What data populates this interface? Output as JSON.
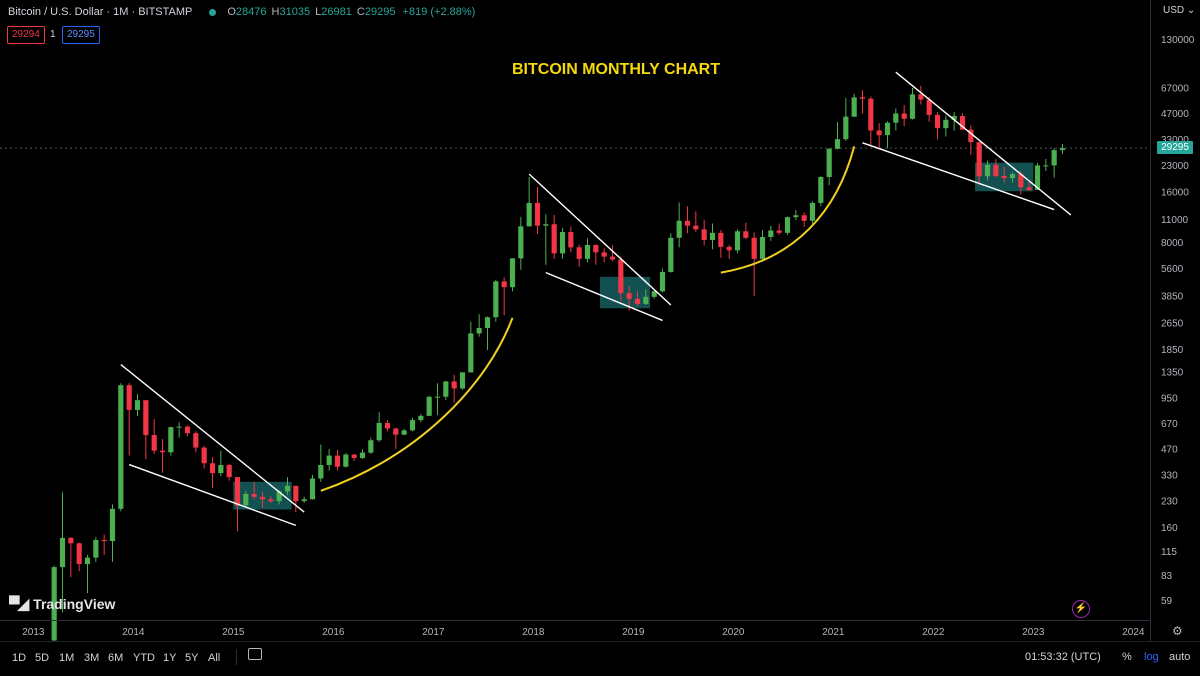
{
  "header": {
    "symbol": "Bitcoin / U.S. Dollar · 1M · BITSTAMP",
    "o_label": "O",
    "o_value": "28476",
    "h_label": "H",
    "h_value": "31035",
    "l_label": "L",
    "l_value": "26981",
    "c_label": "C",
    "c_value": "29295",
    "change": "+819 (+2.88%)"
  },
  "order": {
    "bid": "29294",
    "qty": "1",
    "ask": "29295"
  },
  "axis": {
    "currency": "USD",
    "last_price": "29295"
  },
  "branding": {
    "name": "TradingView"
  },
  "bottom_bar": {
    "timeframes": [
      "1D",
      "5D",
      "1M",
      "3M",
      "6M",
      "YTD",
      "1Y",
      "5Y",
      "All"
    ],
    "clock": "01:53:32 (UTC)",
    "percent": "%",
    "log": "log",
    "auto": "auto"
  },
  "colors": {
    "up": "#4caf50",
    "down": "#f23645",
    "curve": "#f2d022",
    "box": "#1a6b6e",
    "title": "#f5d90a"
  },
  "chart_data": {
    "type": "candlestick",
    "title": "BITCOIN MONTHLY CHART",
    "xlabel": "",
    "ylabel": "",
    "scale": "log",
    "ylim": [
      45,
      170000
    ],
    "y_ticks": [
      130000,
      67000,
      47000,
      33000,
      23000,
      16000,
      11000,
      8000,
      5600,
      3850,
      2650,
      1850,
      1350,
      950,
      670,
      470,
      330,
      230,
      160,
      115,
      83,
      59
    ],
    "x_ticks": [
      "2013",
      "2014",
      "2015",
      "2016",
      "2017",
      "2018",
      "2019",
      "2020",
      "2021",
      "2022",
      "2023",
      "2024"
    ],
    "x_start": "2012-09",
    "x_end": "2024-03",
    "candles": [
      {
        "t": "2013-03",
        "o": 34,
        "h": 95,
        "l": 32,
        "c": 93
      },
      {
        "t": "2013-04",
        "o": 93,
        "h": 260,
        "l": 50,
        "c": 139
      },
      {
        "t": "2013-05",
        "o": 139,
        "h": 140,
        "l": 81,
        "c": 129
      },
      {
        "t": "2013-06",
        "o": 129,
        "h": 130,
        "l": 88,
        "c": 97
      },
      {
        "t": "2013-07",
        "o": 97,
        "h": 110,
        "l": 65,
        "c": 106
      },
      {
        "t": "2013-08",
        "o": 106,
        "h": 140,
        "l": 100,
        "c": 135
      },
      {
        "t": "2013-09",
        "o": 135,
        "h": 145,
        "l": 110,
        "c": 133
      },
      {
        "t": "2013-10",
        "o": 133,
        "h": 220,
        "l": 100,
        "c": 207
      },
      {
        "t": "2013-11",
        "o": 207,
        "h": 1160,
        "l": 200,
        "c": 1130
      },
      {
        "t": "2013-12",
        "o": 1130,
        "h": 1165,
        "l": 430,
        "c": 805
      },
      {
        "t": "2014-01",
        "o": 805,
        "h": 1000,
        "l": 740,
        "c": 920
      },
      {
        "t": "2014-02",
        "o": 920,
        "h": 920,
        "l": 410,
        "c": 570
      },
      {
        "t": "2014-03",
        "o": 570,
        "h": 710,
        "l": 440,
        "c": 460
      },
      {
        "t": "2014-04",
        "o": 460,
        "h": 540,
        "l": 340,
        "c": 450
      },
      {
        "t": "2014-05",
        "o": 450,
        "h": 640,
        "l": 430,
        "c": 635
      },
      {
        "t": "2014-06",
        "o": 635,
        "h": 680,
        "l": 550,
        "c": 640
      },
      {
        "t": "2014-07",
        "o": 640,
        "h": 650,
        "l": 560,
        "c": 585
      },
      {
        "t": "2014-08",
        "o": 585,
        "h": 600,
        "l": 450,
        "c": 480
      },
      {
        "t": "2014-09",
        "o": 480,
        "h": 490,
        "l": 360,
        "c": 387
      },
      {
        "t": "2014-10",
        "o": 387,
        "h": 420,
        "l": 275,
        "c": 338
      },
      {
        "t": "2014-11",
        "o": 338,
        "h": 460,
        "l": 325,
        "c": 378
      },
      {
        "t": "2014-12",
        "o": 378,
        "h": 385,
        "l": 305,
        "c": 320
      },
      {
        "t": "2015-01",
        "o": 320,
        "h": 320,
        "l": 152,
        "c": 217
      },
      {
        "t": "2015-02",
        "o": 217,
        "h": 265,
        "l": 210,
        "c": 254
      },
      {
        "t": "2015-03",
        "o": 254,
        "h": 300,
        "l": 235,
        "c": 244
      },
      {
        "t": "2015-04",
        "o": 244,
        "h": 262,
        "l": 210,
        "c": 236
      },
      {
        "t": "2015-05",
        "o": 236,
        "h": 245,
        "l": 225,
        "c": 230
      },
      {
        "t": "2015-06",
        "o": 230,
        "h": 267,
        "l": 220,
        "c": 263
      },
      {
        "t": "2015-07",
        "o": 263,
        "h": 320,
        "l": 250,
        "c": 284
      },
      {
        "t": "2015-08",
        "o": 284,
        "h": 285,
        "l": 198,
        "c": 230
      },
      {
        "t": "2015-09",
        "o": 230,
        "h": 245,
        "l": 225,
        "c": 236
      },
      {
        "t": "2015-10",
        "o": 236,
        "h": 330,
        "l": 235,
        "c": 314
      },
      {
        "t": "2015-11",
        "o": 314,
        "h": 500,
        "l": 300,
        "c": 378
      },
      {
        "t": "2015-12",
        "o": 378,
        "h": 470,
        "l": 350,
        "c": 430
      },
      {
        "t": "2016-01",
        "o": 430,
        "h": 465,
        "l": 350,
        "c": 369
      },
      {
        "t": "2016-02",
        "o": 369,
        "h": 445,
        "l": 365,
        "c": 436
      },
      {
        "t": "2016-03",
        "o": 436,
        "h": 440,
        "l": 400,
        "c": 416
      },
      {
        "t": "2016-04",
        "o": 416,
        "h": 470,
        "l": 410,
        "c": 448
      },
      {
        "t": "2016-05",
        "o": 448,
        "h": 550,
        "l": 440,
        "c": 531
      },
      {
        "t": "2016-06",
        "o": 531,
        "h": 780,
        "l": 520,
        "c": 673
      },
      {
        "t": "2016-07",
        "o": 673,
        "h": 700,
        "l": 600,
        "c": 624
      },
      {
        "t": "2016-08",
        "o": 624,
        "h": 630,
        "l": 470,
        "c": 573
      },
      {
        "t": "2016-09",
        "o": 573,
        "h": 620,
        "l": 570,
        "c": 608
      },
      {
        "t": "2016-10",
        "o": 608,
        "h": 720,
        "l": 600,
        "c": 700
      },
      {
        "t": "2016-11",
        "o": 700,
        "h": 760,
        "l": 680,
        "c": 742
      },
      {
        "t": "2016-12",
        "o": 742,
        "h": 980,
        "l": 740,
        "c": 963
      },
      {
        "t": "2017-01",
        "o": 963,
        "h": 1160,
        "l": 750,
        "c": 965
      },
      {
        "t": "2017-02",
        "o": 965,
        "h": 1200,
        "l": 920,
        "c": 1190
      },
      {
        "t": "2017-03",
        "o": 1190,
        "h": 1300,
        "l": 890,
        "c": 1080
      },
      {
        "t": "2017-04",
        "o": 1080,
        "h": 1350,
        "l": 1060,
        "c": 1348
      },
      {
        "t": "2017-05",
        "o": 1348,
        "h": 2700,
        "l": 1340,
        "c": 2300
      },
      {
        "t": "2017-06",
        "o": 2300,
        "h": 3000,
        "l": 2200,
        "c": 2480
      },
      {
        "t": "2017-07",
        "o": 2480,
        "h": 2900,
        "l": 1830,
        "c": 2875
      },
      {
        "t": "2017-08",
        "o": 2875,
        "h": 4800,
        "l": 2700,
        "c": 4700
      },
      {
        "t": "2017-09",
        "o": 4700,
        "h": 4970,
        "l": 2950,
        "c": 4340
      },
      {
        "t": "2017-10",
        "o": 4340,
        "h": 6470,
        "l": 4100,
        "c": 6450
      },
      {
        "t": "2017-11",
        "o": 6450,
        "h": 11400,
        "l": 5500,
        "c": 10000
      },
      {
        "t": "2017-12",
        "o": 10000,
        "h": 19700,
        "l": 10000,
        "c": 13800
      },
      {
        "t": "2018-01",
        "o": 13800,
        "h": 17200,
        "l": 9000,
        "c": 10100
      },
      {
        "t": "2018-02",
        "o": 10100,
        "h": 11800,
        "l": 5900,
        "c": 10300
      },
      {
        "t": "2018-03",
        "o": 10300,
        "h": 11700,
        "l": 6400,
        "c": 6900
      },
      {
        "t": "2018-04",
        "o": 6900,
        "h": 9800,
        "l": 6400,
        "c": 9250
      },
      {
        "t": "2018-05",
        "o": 9250,
        "h": 10000,
        "l": 7000,
        "c": 7500
      },
      {
        "t": "2018-06",
        "o": 7500,
        "h": 7800,
        "l": 5750,
        "c": 6400
      },
      {
        "t": "2018-07",
        "o": 6400,
        "h": 8500,
        "l": 6100,
        "c": 7750
      },
      {
        "t": "2018-08",
        "o": 7750,
        "h": 7800,
        "l": 5900,
        "c": 7000
      },
      {
        "t": "2018-09",
        "o": 7000,
        "h": 7400,
        "l": 6100,
        "c": 6600
      },
      {
        "t": "2018-10",
        "o": 6600,
        "h": 7700,
        "l": 6200,
        "c": 6350
      },
      {
        "t": "2018-11",
        "o": 6350,
        "h": 6600,
        "l": 3600,
        "c": 4000
      },
      {
        "t": "2018-12",
        "o": 4000,
        "h": 4400,
        "l": 3150,
        "c": 3700
      },
      {
        "t": "2019-01",
        "o": 3700,
        "h": 4100,
        "l": 3350,
        "c": 3450
      },
      {
        "t": "2019-02",
        "o": 3450,
        "h": 4200,
        "l": 3400,
        "c": 3800
      },
      {
        "t": "2019-03",
        "o": 3800,
        "h": 4150,
        "l": 3700,
        "c": 4100
      },
      {
        "t": "2019-04",
        "o": 4100,
        "h": 5600,
        "l": 4050,
        "c": 5350
      },
      {
        "t": "2019-05",
        "o": 5350,
        "h": 9100,
        "l": 5300,
        "c": 8550
      },
      {
        "t": "2019-06",
        "o": 8550,
        "h": 13900,
        "l": 7500,
        "c": 10800
      },
      {
        "t": "2019-07",
        "o": 10800,
        "h": 13200,
        "l": 9100,
        "c": 10100
      },
      {
        "t": "2019-08",
        "o": 10100,
        "h": 12300,
        "l": 9300,
        "c": 9600
      },
      {
        "t": "2019-09",
        "o": 9600,
        "h": 10950,
        "l": 7700,
        "c": 8300
      },
      {
        "t": "2019-10",
        "o": 8300,
        "h": 10400,
        "l": 7300,
        "c": 9150
      },
      {
        "t": "2019-11",
        "o": 9150,
        "h": 9500,
        "l": 6500,
        "c": 7550
      },
      {
        "t": "2019-12",
        "o": 7550,
        "h": 7750,
        "l": 6400,
        "c": 7200
      },
      {
        "t": "2020-01",
        "o": 7200,
        "h": 9600,
        "l": 6900,
        "c": 9350
      },
      {
        "t": "2020-02",
        "o": 9350,
        "h": 10500,
        "l": 8400,
        "c": 8550
      },
      {
        "t": "2020-03",
        "o": 8550,
        "h": 9200,
        "l": 3850,
        "c": 6400
      },
      {
        "t": "2020-04",
        "o": 6400,
        "h": 9500,
        "l": 6200,
        "c": 8650
      },
      {
        "t": "2020-05",
        "o": 8650,
        "h": 10100,
        "l": 8200,
        "c": 9450
      },
      {
        "t": "2020-06",
        "o": 9450,
        "h": 10400,
        "l": 8900,
        "c": 9150
      },
      {
        "t": "2020-07",
        "o": 9150,
        "h": 11450,
        "l": 8900,
        "c": 11350
      },
      {
        "t": "2020-08",
        "o": 11350,
        "h": 12500,
        "l": 10900,
        "c": 11650
      },
      {
        "t": "2020-09",
        "o": 11650,
        "h": 12100,
        "l": 9900,
        "c": 10800
      },
      {
        "t": "2020-10",
        "o": 10800,
        "h": 14100,
        "l": 10400,
        "c": 13800
      },
      {
        "t": "2020-11",
        "o": 13800,
        "h": 19900,
        "l": 13200,
        "c": 19700
      },
      {
        "t": "2020-12",
        "o": 19700,
        "h": 29300,
        "l": 17600,
        "c": 29000
      },
      {
        "t": "2021-01",
        "o": 29000,
        "h": 41900,
        "l": 28800,
        "c": 33100
      },
      {
        "t": "2021-02",
        "o": 33100,
        "h": 58300,
        "l": 32300,
        "c": 45100
      },
      {
        "t": "2021-03",
        "o": 45100,
        "h": 61700,
        "l": 44900,
        "c": 58800
      },
      {
        "t": "2021-04",
        "o": 58800,
        "h": 64800,
        "l": 47000,
        "c": 57700
      },
      {
        "t": "2021-05",
        "o": 57700,
        "h": 59500,
        "l": 30000,
        "c": 37300
      },
      {
        "t": "2021-06",
        "o": 37300,
        "h": 41300,
        "l": 28800,
        "c": 35000
      },
      {
        "t": "2021-07",
        "o": 35000,
        "h": 42300,
        "l": 29300,
        "c": 41500
      },
      {
        "t": "2021-08",
        "o": 41500,
        "h": 50500,
        "l": 37300,
        "c": 47100
      },
      {
        "t": "2021-09",
        "o": 47100,
        "h": 52900,
        "l": 39600,
        "c": 43800
      },
      {
        "t": "2021-10",
        "o": 43800,
        "h": 67000,
        "l": 43300,
        "c": 61300
      },
      {
        "t": "2021-11",
        "o": 61300,
        "h": 69000,
        "l": 53300,
        "c": 57000
      },
      {
        "t": "2021-12",
        "o": 57000,
        "h": 59100,
        "l": 42000,
        "c": 46200
      },
      {
        "t": "2022-01",
        "o": 46200,
        "h": 47900,
        "l": 32900,
        "c": 38500
      },
      {
        "t": "2022-02",
        "o": 38500,
        "h": 45800,
        "l": 34300,
        "c": 43200
      },
      {
        "t": "2022-03",
        "o": 43200,
        "h": 48200,
        "l": 37200,
        "c": 45500
      },
      {
        "t": "2022-04",
        "o": 45500,
        "h": 47400,
        "l": 37600,
        "c": 37700
      },
      {
        "t": "2022-05",
        "o": 37700,
        "h": 40000,
        "l": 26700,
        "c": 31800
      },
      {
        "t": "2022-06",
        "o": 31800,
        "h": 31900,
        "l": 17600,
        "c": 19900
      },
      {
        "t": "2022-07",
        "o": 19900,
        "h": 24600,
        "l": 18800,
        "c": 23300
      },
      {
        "t": "2022-08",
        "o": 23300,
        "h": 25200,
        "l": 19600,
        "c": 20000
      },
      {
        "t": "2022-09",
        "o": 20000,
        "h": 22700,
        "l": 18200,
        "c": 19400
      },
      {
        "t": "2022-10",
        "o": 19400,
        "h": 21000,
        "l": 18200,
        "c": 20500
      },
      {
        "t": "2022-11",
        "o": 20500,
        "h": 21400,
        "l": 15500,
        "c": 17100
      },
      {
        "t": "2022-12",
        "o": 17100,
        "h": 18400,
        "l": 16300,
        "c": 16500
      },
      {
        "t": "2023-01",
        "o": 16500,
        "h": 23900,
        "l": 16500,
        "c": 23100
      },
      {
        "t": "2023-02",
        "o": 23100,
        "h": 25200,
        "l": 21400,
        "c": 23100
      },
      {
        "t": "2023-03",
        "o": 23100,
        "h": 29200,
        "l": 19500,
        "c": 28500
      },
      {
        "t": "2023-04",
        "o": 28476,
        "h": 31035,
        "l": 26981,
        "c": 29295
      }
    ],
    "trendlines": [
      {
        "from": {
          "t": "2013-11",
          "v": 1500
        },
        "to": {
          "t": "2015-09",
          "v": 198
        }
      },
      {
        "from": {
          "t": "2013-12",
          "v": 380
        },
        "to": {
          "t": "2015-08",
          "v": 165
        }
      },
      {
        "from": {
          "t": "2017-12",
          "v": 20500
        },
        "to": {
          "t": "2019-05",
          "v": 3400
        }
      },
      {
        "from": {
          "t": "2018-02",
          "v": 5300
        },
        "to": {
          "t": "2019-04",
          "v": 2750
        }
      },
      {
        "from": {
          "t": "2021-08",
          "v": 83000
        },
        "to": {
          "t": "2023-05",
          "v": 11700
        }
      },
      {
        "from": {
          "t": "2021-04",
          "v": 31500
        },
        "to": {
          "t": "2023-03",
          "v": 12600
        }
      }
    ],
    "curves": [
      {
        "points": [
          {
            "t": "2015-11",
            "v": 265
          },
          {
            "t": "2016-11",
            "v": 430
          },
          {
            "t": "2017-07",
            "v": 1150
          },
          {
            "t": "2017-10",
            "v": 2850
          }
        ]
      },
      {
        "points": [
          {
            "t": "2019-11",
            "v": 5300
          },
          {
            "t": "2020-08",
            "v": 6300
          },
          {
            "t": "2021-01",
            "v": 12500
          },
          {
            "t": "2021-03",
            "v": 30000
          }
        ]
      }
    ],
    "boxes": [
      {
        "t1": "2015-01",
        "t2": "2015-07",
        "v_low": 205,
        "v_high": 300
      },
      {
        "t1": "2018-09",
        "t2": "2019-02",
        "v_low": 3250,
        "v_high": 5000
      },
      {
        "t1": "2022-06",
        "t2": "2022-12",
        "v_low": 16200,
        "v_high": 24000
      }
    ]
  }
}
